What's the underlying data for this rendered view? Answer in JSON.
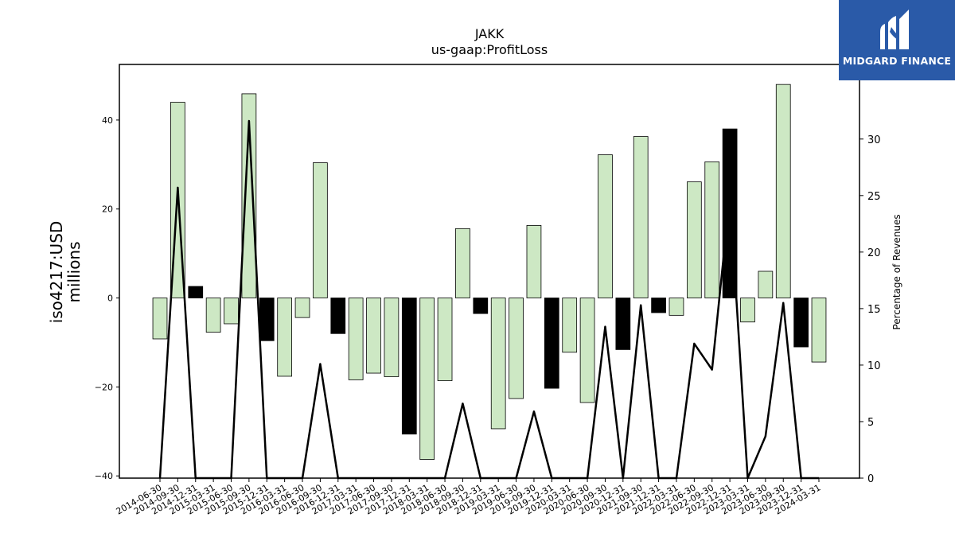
{
  "chart_data": {
    "type": "bar",
    "title": "JAKK",
    "subtitle": "us-gaap:ProfitLoss",
    "ylabel": "iso4217:USD\nmillions",
    "y2label": "Percentage of Revenues",
    "ylim": [
      -40.5,
      52.5
    ],
    "y2lim": [
      0,
      36.6
    ],
    "yticks": [
      -40,
      -20,
      0,
      20,
      40
    ],
    "y2ticks": [
      0,
      5,
      10,
      15,
      20,
      25,
      30
    ],
    "grid": false,
    "colors": {
      "positive_growth": "#cde8c4",
      "negative_growth": "#000000",
      "line": "#000000",
      "edge": "#000000"
    },
    "categories": [
      "2014-06-30",
      "2014-09-30",
      "2014-12-31",
      "2015-03-31",
      "2015-06-30",
      "2015-09-30",
      "2015-12-31",
      "2016-03-31",
      "2016-06-30",
      "2016-09-30",
      "2016-12-31",
      "2017-03-31",
      "2017-06-30",
      "2017-09-30",
      "2017-12-31",
      "2018-03-31",
      "2018-06-30",
      "2018-09-30",
      "2018-12-31",
      "2019-03-31",
      "2019-06-30",
      "2019-09-30",
      "2019-12-31",
      "2020-03-31",
      "2020-06-30",
      "2020-09-30",
      "2020-12-31",
      "2021-09-30",
      "2021-12-31",
      "2022-03-31",
      "2022-06-30",
      "2022-09-30",
      "2022-12-31",
      "2023-03-31",
      "2023-06-30",
      "2023-09-30",
      "2023-12-31",
      "2024-03-31"
    ],
    "series": [
      {
        "kind": "bar",
        "axis": "left",
        "values": [
          -9.2,
          44.0,
          2.6,
          -7.7,
          -5.8,
          45.9,
          -9.6,
          -17.6,
          -4.4,
          30.4,
          -8.0,
          -18.4,
          -16.9,
          -17.7,
          -30.6,
          -36.3,
          -18.6,
          15.6,
          -3.5,
          -29.4,
          -22.6,
          16.3,
          -20.3,
          -12.2,
          -23.5,
          32.2,
          -11.6,
          36.3,
          -3.3,
          -3.9,
          26.1,
          30.6,
          38.0,
          -5.4,
          6.0,
          48.0,
          -11.0,
          -14.4
        ],
        "fill": [
          "green",
          "green",
          "black",
          "green",
          "green",
          "green",
          "black",
          "green",
          "green",
          "green",
          "black",
          "green",
          "green",
          "green",
          "black",
          "green",
          "green",
          "green",
          "black",
          "green",
          "green",
          "green",
          "black",
          "green",
          "green",
          "green",
          "black",
          "green",
          "black",
          "green",
          "green",
          "green",
          "black",
          "green",
          "green",
          "green",
          "black",
          "green"
        ]
      },
      {
        "kind": "line",
        "axis": "right",
        "values": [
          0,
          25.7,
          0,
          0,
          0,
          31.6,
          0,
          0,
          0,
          10.1,
          0,
          0,
          0,
          0,
          0,
          0,
          0,
          6.6,
          0,
          0,
          0,
          5.9,
          0,
          0,
          0,
          13.4,
          0,
          15.3,
          0,
          0,
          11.9,
          9.6,
          25.0,
          0,
          3.7,
          15.5,
          0,
          0
        ]
      }
    ]
  },
  "logo": {
    "text": "MIDGARD FINANCE"
  }
}
